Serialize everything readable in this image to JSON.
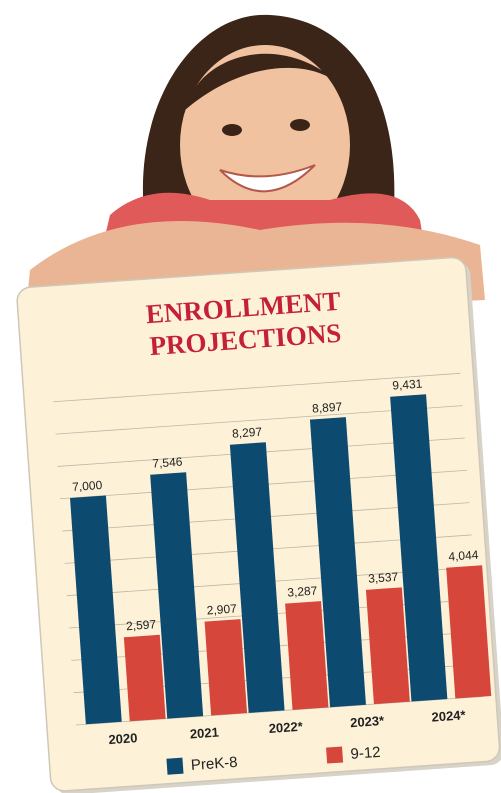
{
  "chart_data": {
    "type": "bar",
    "title": [
      "ENROLLMENT",
      "PROJECTIONS"
    ],
    "categories": [
      "2020",
      "2021",
      "2022*",
      "2023*",
      "2024*"
    ],
    "series": [
      {
        "name": "PreK-8",
        "color": "#0d4a70",
        "values": [
          7000,
          7546,
          8297,
          8897,
          9431
        ],
        "value_labels": [
          "7,000",
          "7,546",
          "8,297",
          "8,897",
          "9,431"
        ]
      },
      {
        "name": "9-12",
        "color": "#d6463a",
        "values": [
          2597,
          2907,
          3287,
          3537,
          4044
        ],
        "value_labels": [
          "2,597",
          "2,907",
          "3,287",
          "3,537",
          "4,044"
        ]
      }
    ],
    "ylim": [
      0,
      10000
    ],
    "yticks": [
      0,
      1000,
      2000,
      3000,
      4000,
      5000,
      6000,
      7000,
      8000,
      9000,
      10000
    ],
    "grid": true,
    "legend": "bottom"
  }
}
